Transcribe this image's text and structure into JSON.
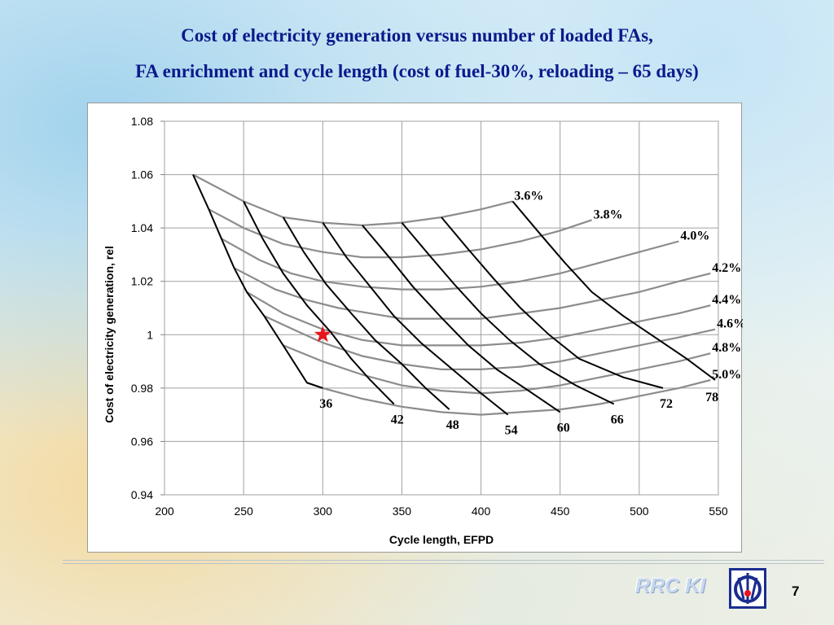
{
  "slide": {
    "title_line1": "Cost of electricity generation versus number of loaded FAs,",
    "title_line2": "FA enrichment and cycle length (cost of fuel-30%, reloading – 65 days)",
    "brand": "RRC KI",
    "page_number": "7"
  },
  "chart_data": {
    "type": "line",
    "xlabel": "Cycle length, EFPD",
    "ylabel": "Cost of electricity generation, rel",
    "xlim": [
      200,
      550
    ],
    "ylim": [
      0.94,
      1.08
    ],
    "x_ticks": [
      "200",
      "250",
      "300",
      "350",
      "400",
      "450",
      "500",
      "550"
    ],
    "y_ticks": [
      "0.94",
      "0.96",
      "0.98",
      "1",
      "1.02",
      "1.04",
      "1.06",
      "1.08"
    ],
    "grid": true,
    "enrichment_curves": [
      {
        "name": "3.6%",
        "points": [
          [
            218,
            1.06
          ],
          [
            250,
            1.05
          ],
          [
            275,
            1.044
          ],
          [
            300,
            1.042
          ],
          [
            325,
            1.041
          ],
          [
            350,
            1.042
          ],
          [
            375,
            1.044
          ],
          [
            400,
            1.047
          ],
          [
            420,
            1.05
          ]
        ]
      },
      {
        "name": "3.8%",
        "points": [
          [
            228,
            1.047
          ],
          [
            250,
            1.04
          ],
          [
            275,
            1.034
          ],
          [
            300,
            1.031
          ],
          [
            325,
            1.029
          ],
          [
            350,
            1.029
          ],
          [
            375,
            1.03
          ],
          [
            400,
            1.032
          ],
          [
            425,
            1.035
          ],
          [
            450,
            1.039
          ],
          [
            470,
            1.043
          ]
        ]
      },
      {
        "name": "4.0%",
        "points": [
          [
            236,
            1.036
          ],
          [
            260,
            1.028
          ],
          [
            280,
            1.023
          ],
          [
            300,
            1.02
          ],
          [
            325,
            1.018
          ],
          [
            350,
            1.017
          ],
          [
            375,
            1.017
          ],
          [
            400,
            1.018
          ],
          [
            425,
            1.02
          ],
          [
            450,
            1.023
          ],
          [
            475,
            1.027
          ],
          [
            500,
            1.031
          ],
          [
            525,
            1.035
          ]
        ]
      },
      {
        "name": "4.2%",
        "points": [
          [
            244,
            1.025
          ],
          [
            270,
            1.017
          ],
          [
            290,
            1.013
          ],
          [
            310,
            1.01
          ],
          [
            330,
            1.008
          ],
          [
            350,
            1.006
          ],
          [
            375,
            1.006
          ],
          [
            400,
            1.006
          ],
          [
            425,
            1.008
          ],
          [
            450,
            1.01
          ],
          [
            475,
            1.013
          ],
          [
            500,
            1.016
          ],
          [
            525,
            1.02
          ],
          [
            545,
            1.023
          ]
        ]
      },
      {
        "name": "4.4%",
        "points": [
          [
            252,
            1.016
          ],
          [
            275,
            1.008
          ],
          [
            300,
            1.002
          ],
          [
            325,
            0.998
          ],
          [
            350,
            0.996
          ],
          [
            375,
            0.996
          ],
          [
            400,
            0.996
          ],
          [
            425,
            0.997
          ],
          [
            450,
            0.999
          ],
          [
            475,
            1.002
          ],
          [
            500,
            1.005
          ],
          [
            525,
            1.008
          ],
          [
            545,
            1.011
          ]
        ]
      },
      {
        "name": "4.6%",
        "points": [
          [
            263,
            1.007
          ],
          [
            285,
            1.001
          ],
          [
            300,
            0.997
          ],
          [
            325,
            0.992
          ],
          [
            350,
            0.989
          ],
          [
            375,
            0.987
          ],
          [
            400,
            0.987
          ],
          [
            425,
            0.988
          ],
          [
            450,
            0.99
          ],
          [
            475,
            0.993
          ],
          [
            500,
            0.996
          ],
          [
            525,
            0.999
          ],
          [
            548,
            1.002
          ]
        ]
      },
      {
        "name": "4.8%",
        "points": [
          [
            275,
            0.996
          ],
          [
            300,
            0.99
          ],
          [
            325,
            0.985
          ],
          [
            350,
            0.981
          ],
          [
            375,
            0.979
          ],
          [
            400,
            0.978
          ],
          [
            425,
            0.979
          ],
          [
            450,
            0.981
          ],
          [
            475,
            0.984
          ],
          [
            500,
            0.987
          ],
          [
            525,
            0.99
          ],
          [
            545,
            0.993
          ]
        ]
      },
      {
        "name": "5.0%",
        "points": [
          [
            290,
            0.982
          ],
          [
            300,
            0.98
          ],
          [
            325,
            0.976
          ],
          [
            350,
            0.973
          ],
          [
            375,
            0.971
          ],
          [
            400,
            0.97
          ],
          [
            425,
            0.971
          ],
          [
            450,
            0.972
          ],
          [
            475,
            0.974
          ],
          [
            500,
            0.977
          ],
          [
            525,
            0.98
          ],
          [
            545,
            0.983
          ]
        ]
      }
    ],
    "fa_count_curves": [
      {
        "name": "36",
        "points": [
          [
            218,
            1.06
          ],
          [
            228,
            1.047
          ],
          [
            236,
            1.036
          ],
          [
            244,
            1.025
          ],
          [
            252,
            1.016
          ],
          [
            263,
            1.007
          ],
          [
            275,
            0.996
          ],
          [
            290,
            0.982
          ],
          [
            300,
            0.98
          ]
        ]
      },
      {
        "name": "42",
        "points": [
          [
            250,
            1.05
          ],
          [
            262,
            1.036
          ],
          [
            275,
            1.023
          ],
          [
            290,
            1.011
          ],
          [
            305,
            1.001
          ],
          [
            318,
            0.991
          ],
          [
            330,
            0.983
          ],
          [
            345,
            0.974
          ]
        ]
      },
      {
        "name": "48",
        "points": [
          [
            275,
            1.044
          ],
          [
            288,
            1.031
          ],
          [
            302,
            1.019
          ],
          [
            318,
            1.008
          ],
          [
            333,
            0.998
          ],
          [
            350,
            0.989
          ],
          [
            365,
            0.98
          ],
          [
            380,
            0.972
          ]
        ]
      },
      {
        "name": "54",
        "points": [
          [
            300,
            1.042
          ],
          [
            315,
            1.029
          ],
          [
            330,
            1.018
          ],
          [
            345,
            1.007
          ],
          [
            362,
            0.997
          ],
          [
            380,
            0.988
          ],
          [
            398,
            0.979
          ],
          [
            417,
            0.97
          ]
        ]
      },
      {
        "name": "60",
        "points": [
          [
            325,
            1.041
          ],
          [
            342,
            1.029
          ],
          [
            357,
            1.018
          ],
          [
            374,
            1.007
          ],
          [
            392,
            0.996
          ],
          [
            410,
            0.987
          ],
          [
            430,
            0.979
          ],
          [
            450,
            0.971
          ]
        ]
      },
      {
        "name": "66",
        "points": [
          [
            350,
            1.042
          ],
          [
            367,
            1.03
          ],
          [
            383,
            1.019
          ],
          [
            400,
            1.008
          ],
          [
            418,
            0.998
          ],
          [
            437,
            0.989
          ],
          [
            460,
            0.981
          ],
          [
            484,
            0.974
          ]
        ]
      },
      {
        "name": "72",
        "points": [
          [
            375,
            1.044
          ],
          [
            392,
            1.032
          ],
          [
            408,
            1.021
          ],
          [
            425,
            1.01
          ],
          [
            443,
            1.0
          ],
          [
            462,
            0.991
          ],
          [
            490,
            0.984
          ],
          [
            515,
            0.98
          ]
        ]
      },
      {
        "name": "78",
        "points": [
          [
            420,
            1.05
          ],
          [
            437,
            1.038
          ],
          [
            453,
            1.027
          ],
          [
            470,
            1.016
          ],
          [
            490,
            1.007
          ],
          [
            510,
            0.999
          ],
          [
            530,
            0.991
          ],
          [
            548,
            0.983
          ]
        ]
      }
    ],
    "marker": {
      "x": 300,
      "y": 1.0,
      "symbol": "star",
      "color": "#e8141c"
    },
    "colors": {
      "enrichment_line": "#8c8c8c",
      "fa_line": "#000000",
      "grid": "#a0a0a0"
    }
  }
}
